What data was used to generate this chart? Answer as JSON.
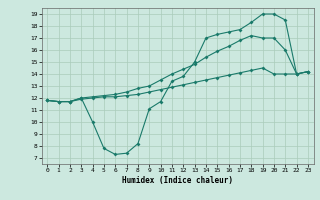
{
  "bg_color": "#cce8df",
  "grid_color": "#aaccbb",
  "line_color": "#1a7a6a",
  "xlim": [
    -0.5,
    23.5
  ],
  "ylim": [
    6.5,
    19.5
  ],
  "xticks": [
    0,
    1,
    2,
    3,
    4,
    5,
    6,
    7,
    8,
    9,
    10,
    11,
    12,
    13,
    14,
    15,
    16,
    17,
    18,
    19,
    20,
    21,
    22,
    23
  ],
  "yticks": [
    7,
    8,
    9,
    10,
    11,
    12,
    13,
    14,
    15,
    16,
    17,
    18,
    19
  ],
  "xlabel": "Humidex (Indice chaleur)",
  "line1_x": [
    0,
    1,
    2,
    3,
    4,
    5,
    6,
    7,
    8,
    9,
    10,
    11,
    12,
    13,
    14,
    15,
    16,
    17,
    18,
    19,
    20,
    21,
    22,
    23
  ],
  "line1_y": [
    11.8,
    11.7,
    11.7,
    12.0,
    10.0,
    7.8,
    7.3,
    7.4,
    8.2,
    11.1,
    11.7,
    13.4,
    13.8,
    15.0,
    17.0,
    17.3,
    17.5,
    17.7,
    18.3,
    19.0,
    19.0,
    18.5,
    14.0,
    14.2
  ],
  "line2_x": [
    0,
    1,
    2,
    3,
    4,
    5,
    6,
    7,
    8,
    9,
    10,
    11,
    12,
    13,
    14,
    15,
    16,
    17,
    18,
    19,
    20,
    21,
    22,
    23
  ],
  "line2_y": [
    11.8,
    11.7,
    11.7,
    12.0,
    12.1,
    12.2,
    12.3,
    12.5,
    12.8,
    13.0,
    13.5,
    14.0,
    14.4,
    14.8,
    15.4,
    15.9,
    16.3,
    16.8,
    17.2,
    17.0,
    17.0,
    16.0,
    14.0,
    14.2
  ],
  "line3_x": [
    0,
    1,
    2,
    3,
    4,
    5,
    6,
    7,
    8,
    9,
    10,
    11,
    12,
    13,
    14,
    15,
    16,
    17,
    18,
    19,
    20,
    21,
    22,
    23
  ],
  "line3_y": [
    11.8,
    11.7,
    11.7,
    11.9,
    12.0,
    12.1,
    12.1,
    12.2,
    12.3,
    12.5,
    12.7,
    12.9,
    13.1,
    13.3,
    13.5,
    13.7,
    13.9,
    14.1,
    14.3,
    14.5,
    14.0,
    14.0,
    14.0,
    14.2
  ]
}
